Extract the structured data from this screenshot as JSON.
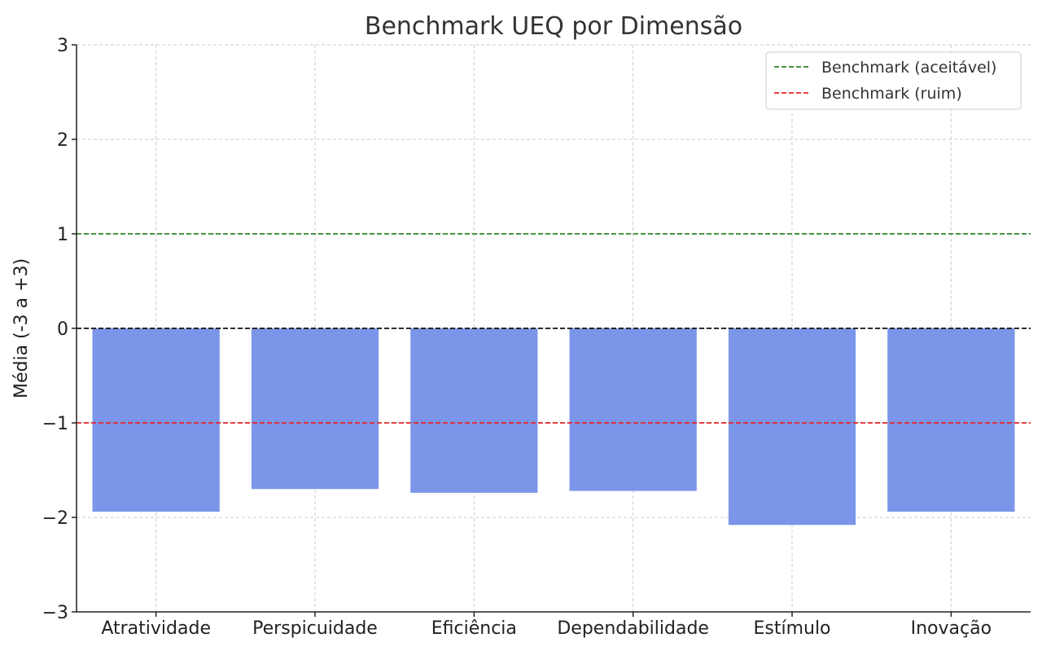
{
  "chart_data": {
    "type": "bar",
    "title": "Benchmark UEQ por Dimensão",
    "xlabel": "",
    "ylabel": "Média (-3 a +3)",
    "categories": [
      "Atratividade",
      "Perspicuidade",
      "Eficiência",
      "Dependabilidade",
      "Estímulo",
      "Inovação"
    ],
    "values": [
      -1.94,
      -1.7,
      -1.74,
      -1.72,
      -2.08,
      -1.94
    ],
    "bar_color": "#7b96e8",
    "ylim": [
      -3,
      3
    ],
    "yticks": [
      -3,
      -2,
      -1,
      0,
      1,
      2,
      3
    ],
    "ytick_labels": [
      "−3",
      "−2",
      "−1",
      "0",
      "1",
      "2",
      "3"
    ],
    "grid": true,
    "reference_lines": [
      {
        "name": "Benchmark (aceitável)",
        "value": 1,
        "color": "#2a8a2a",
        "style": "dashed",
        "in_legend": true
      },
      {
        "name": "Benchmark (ruim)",
        "value": -1,
        "color": "#e8242a",
        "style": "dashed",
        "in_legend": true
      },
      {
        "value": 0,
        "color": "#111111",
        "style": "dashed",
        "in_legend": false
      }
    ],
    "legend_position": "top-right"
  }
}
